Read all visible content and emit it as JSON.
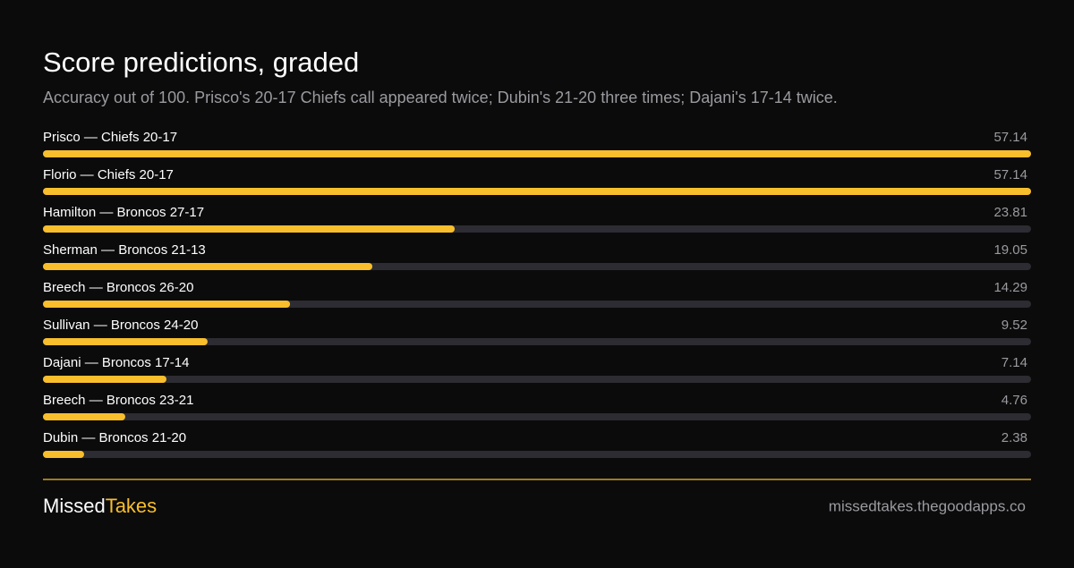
{
  "chart_data": {
    "type": "bar",
    "orientation": "horizontal",
    "title": "Score predictions, graded",
    "subtitle": "Accuracy out of 100. Prisco's 20-17 Chiefs call appeared twice; Dubin's 21-20 three times; Dajani's 17-14 twice.",
    "categories": [
      "Prisco — Chiefs 20-17",
      "Florio — Chiefs 20-17",
      "Hamilton — Broncos 27-17",
      "Sherman — Broncos 21-13",
      "Breech — Broncos 26-20",
      "Sullivan — Broncos 24-20",
      "Dajani — Broncos 17-14",
      "Breech — Broncos 23-21",
      "Dubin — Broncos 21-20"
    ],
    "values": [
      57.14,
      57.14,
      23.81,
      19.05,
      14.29,
      9.52,
      7.14,
      4.76,
      2.38
    ],
    "xlim": [
      0,
      57.14
    ],
    "color": "#f8be2c",
    "track_color": "#2c2c32"
  },
  "footer": {
    "brand": [
      "Missed",
      "Takes"
    ],
    "url": "missedtakes.thegoodapps.co"
  }
}
